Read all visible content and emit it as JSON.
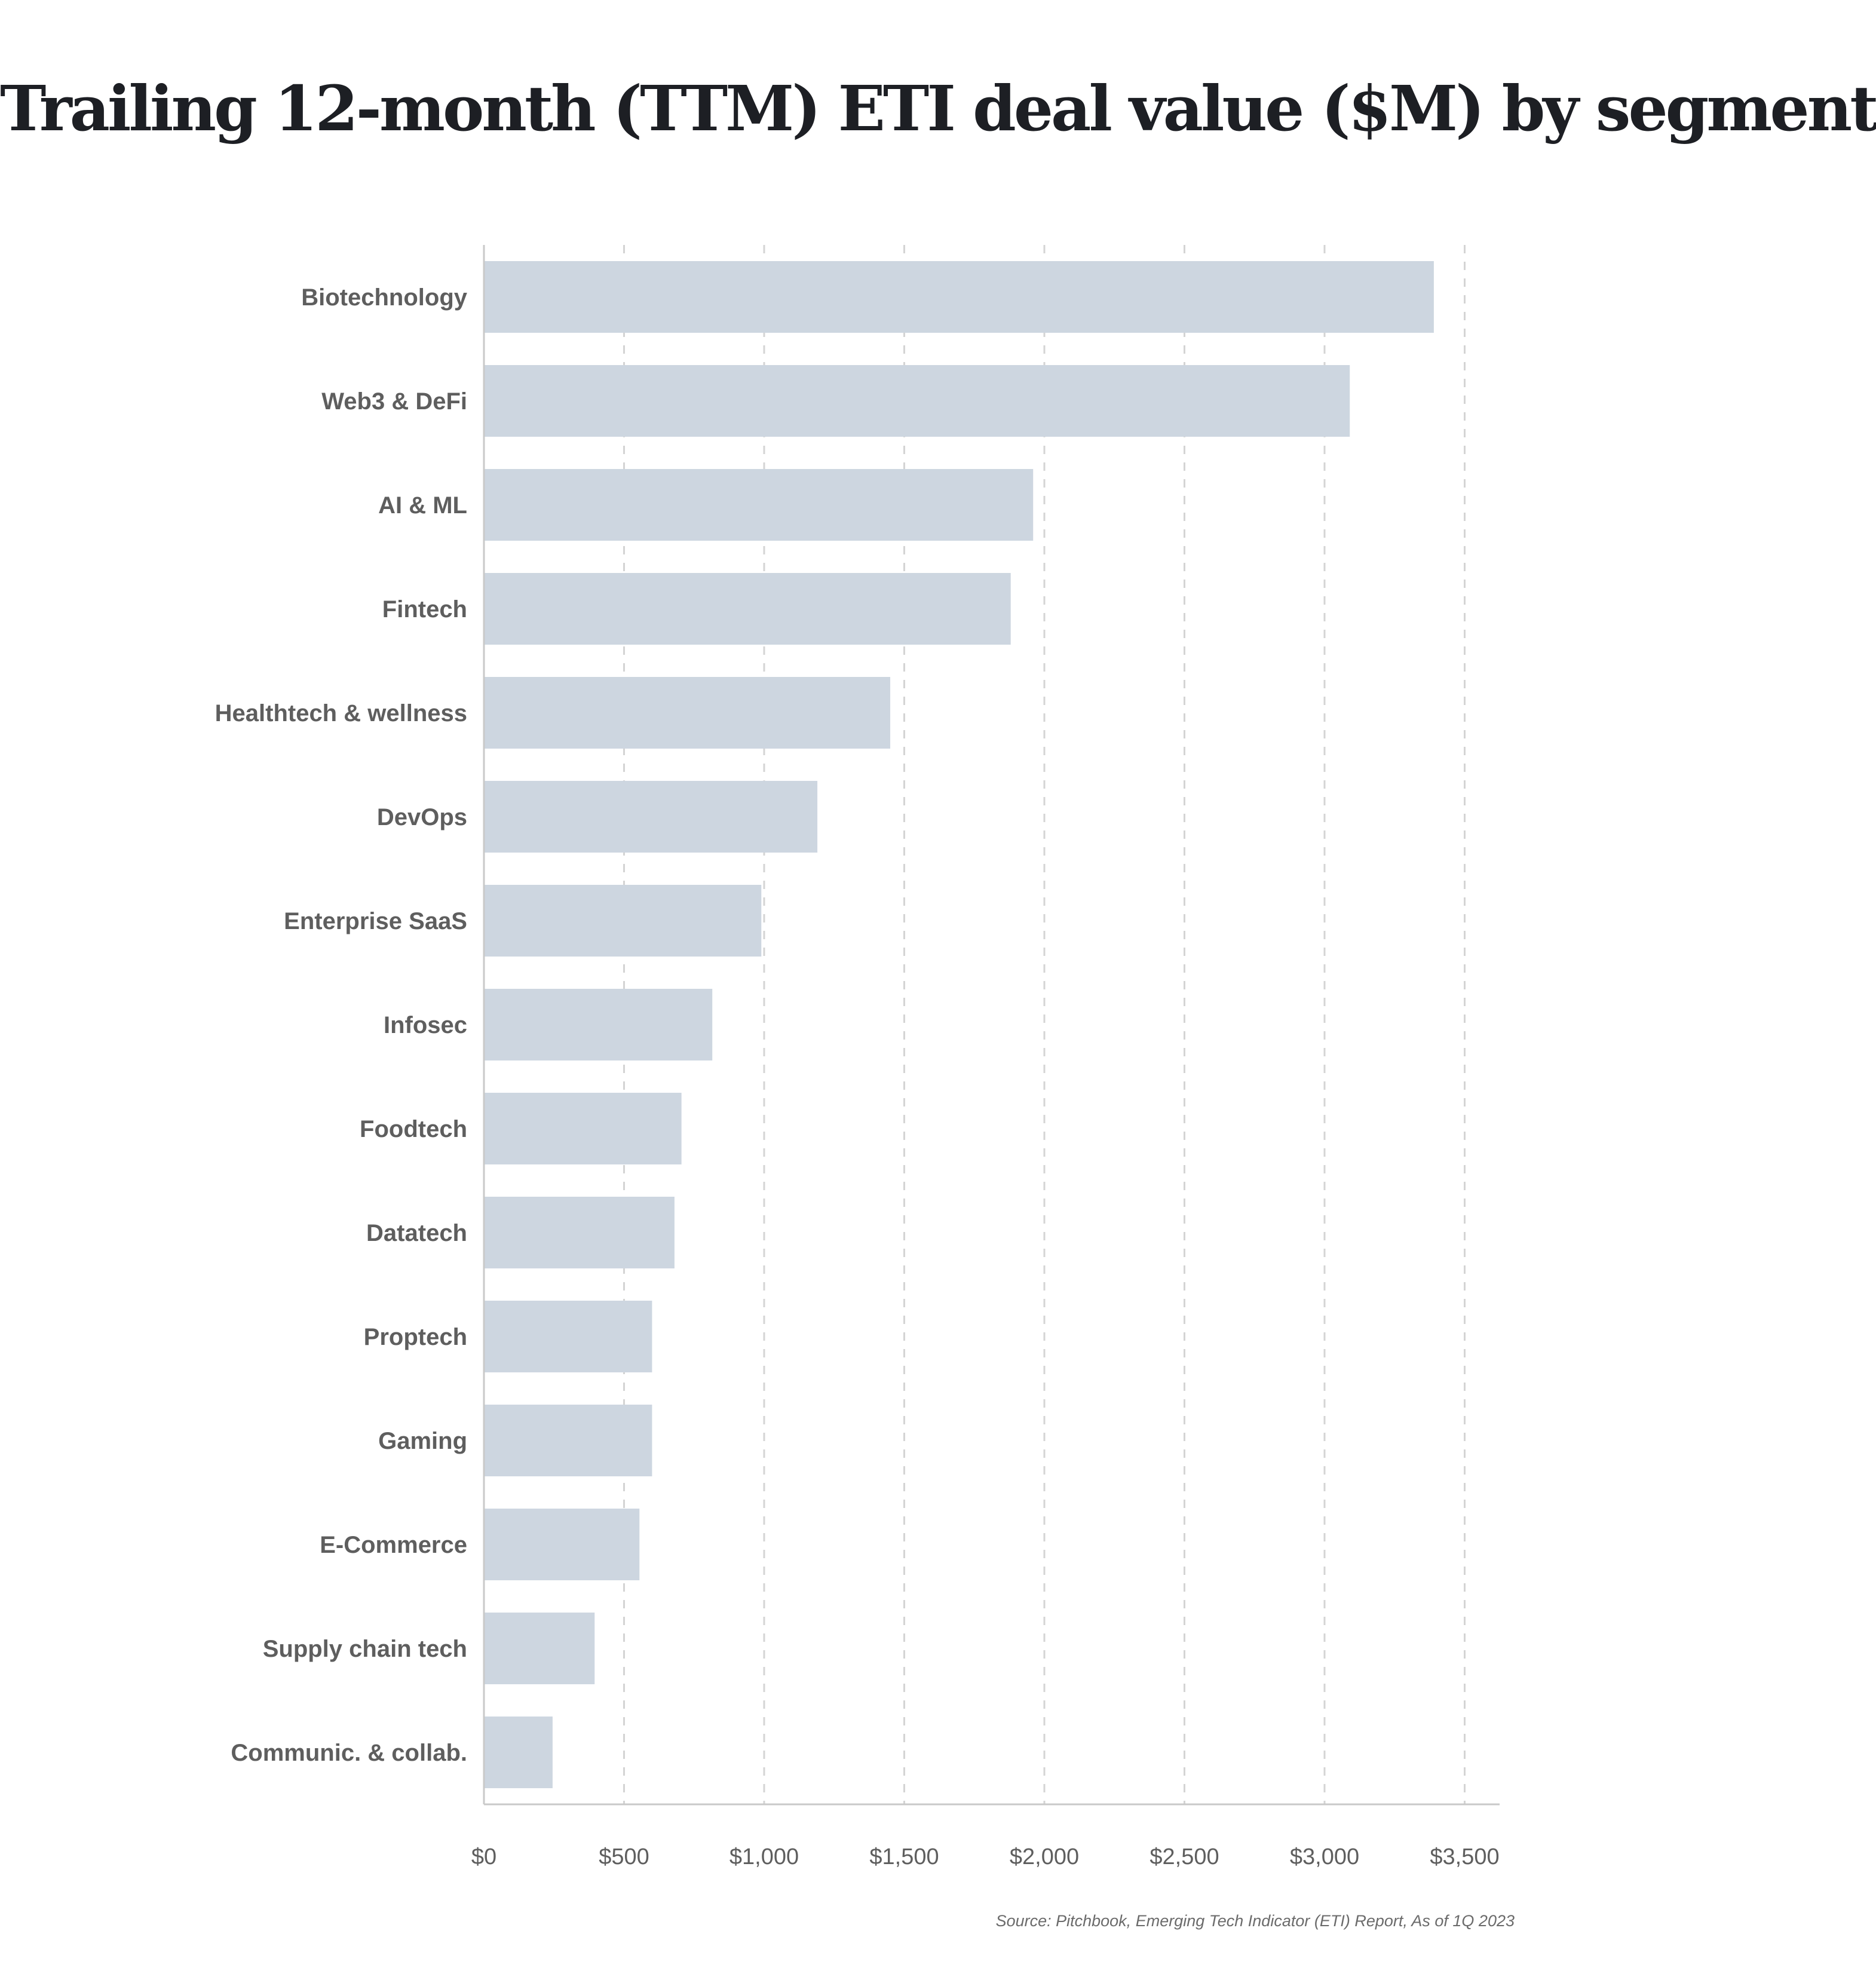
{
  "chart_data": {
    "type": "bar",
    "orientation": "horizontal",
    "title": "Trailing 12-month (TTM) ETI deal value ($M) by segment",
    "xlabel": "",
    "ylabel": "",
    "categories": [
      "Biotechnology",
      "Web3 & DeFi",
      "AI & ML",
      "Fintech",
      "Healthtech & wellness",
      "DevOps",
      "Enterprise SaaS",
      "Infosec",
      "Foodtech",
      "Datatech",
      "Proptech",
      "Gaming",
      "E-Commerce",
      "Supply chain tech",
      "Communic. & collab."
    ],
    "values": [
      3390,
      3090,
      1960,
      1880,
      1450,
      1190,
      990,
      815,
      705,
      680,
      600,
      600,
      555,
      395,
      245
    ],
    "xlim": [
      0,
      3600
    ],
    "x_ticks": [
      0,
      500,
      1000,
      1500,
      2000,
      2500,
      3000,
      3500
    ],
    "x_tick_labels": [
      "$0",
      "$500",
      "$1,000",
      "$1,500",
      "$2,000",
      "$2,500",
      "$3,000",
      "$3,500"
    ],
    "grid": "vertical dashed",
    "legend": "none",
    "bar_color": "#cdd6e0",
    "grid_color": "#d4d4d4",
    "text_color": "#5e5e5e",
    "source": "Source: Pitchbook, Emerging Tech Indicator (ETI) Report, As of 1Q 2023"
  }
}
